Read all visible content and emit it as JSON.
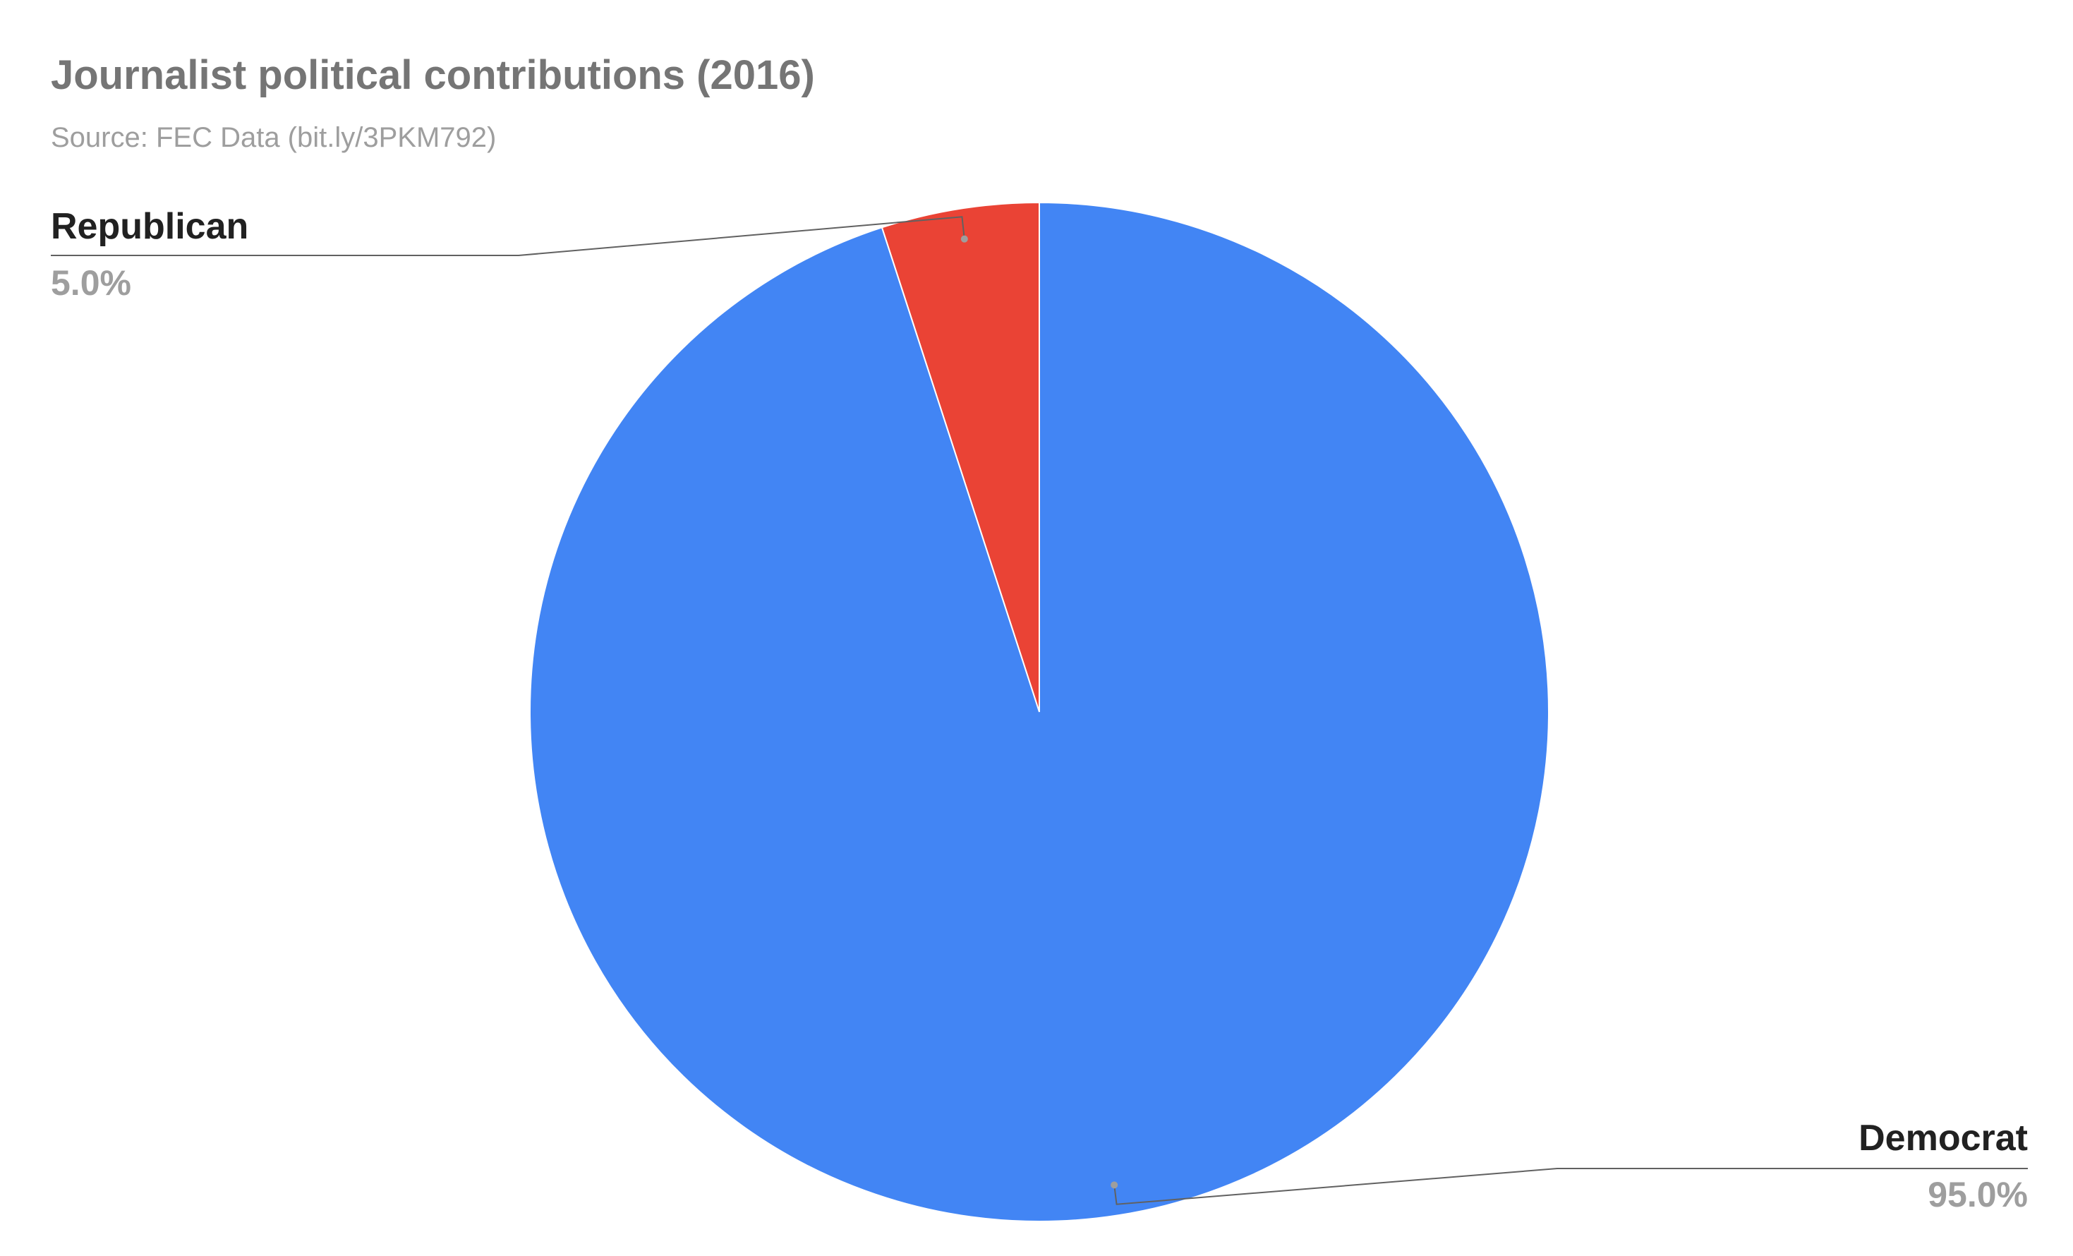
{
  "chart_data": {
    "type": "pie",
    "title": "Journalist political contributions (2016)",
    "subtitle": "Source: FEC Data (bit.ly/3PKM792)",
    "categories": [
      "Republican",
      "Democrat"
    ],
    "values": [
      5,
      95
    ],
    "value_labels": [
      "5.0%",
      "95.0%"
    ],
    "colors": [
      "#ea4335",
      "#4285f4"
    ]
  }
}
